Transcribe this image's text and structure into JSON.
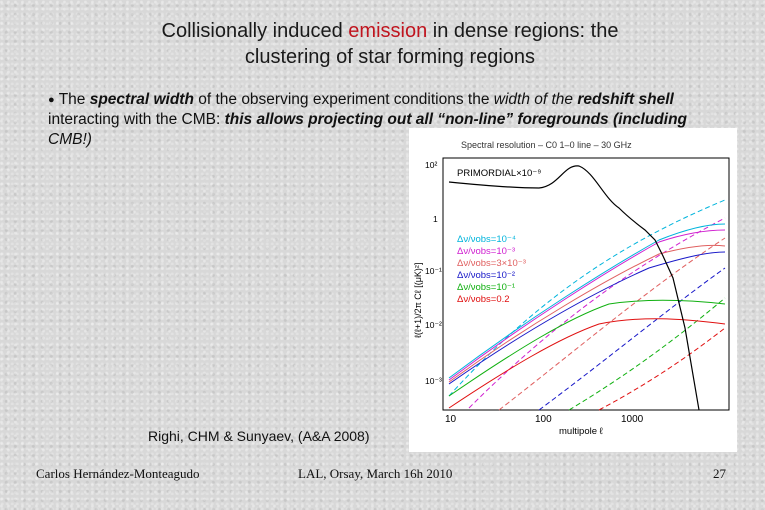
{
  "title": {
    "part1": "Collisionally induced ",
    "highlight": "emission",
    "part2": " in dense regions: the",
    "line2": "clustering of star forming regions"
  },
  "bullet": {
    "s1": "The ",
    "s2": "spectral width",
    "s3": " of the observing experiment conditions the ",
    "s4": "width of the",
    "s5": "redshift shell",
    "s6": " interacting with the CMB: ",
    "s7": "this allows projecting out all “non-line” foregrounds (including ",
    "s8": "CMB!)"
  },
  "figure": {
    "title": "Spectral resolution – C0 1–0 line – 30 GHz",
    "primordial_label": "PRIMORDIAL×10⁻⁹",
    "ylabel": "ℓ(ℓ+1)/2π Cℓ [(μK)²]",
    "xlabel": "multipole ℓ",
    "x_ticks": [
      "10",
      "100",
      "1000"
    ],
    "y_ticks": [
      "10²",
      "1",
      "10⁻¹",
      "10⁻²",
      "10⁻³"
    ],
    "legend": [
      {
        "text": "Δν/νobs=10⁻⁴",
        "color": "#00b4dc"
      },
      {
        "text": "Δν/νobs=10⁻³",
        "color": "#d020d0"
      },
      {
        "text": "Δν/νobs=3×10⁻³",
        "color": "#e06060"
      },
      {
        "text": "Δν/νobs=10⁻²",
        "color": "#1818c8"
      },
      {
        "text": "Δν/νobs=10⁻¹",
        "color": "#10b010"
      },
      {
        "text": "Δν/νobs=0.2",
        "color": "#e01010"
      }
    ]
  },
  "caption": "Righi, CHM & Sunyaev, (A&A 2008)",
  "footer": {
    "author": "Carlos Hernández-Monteagudo",
    "event": "LAL, Orsay, March 16h 2010",
    "page": "27"
  }
}
